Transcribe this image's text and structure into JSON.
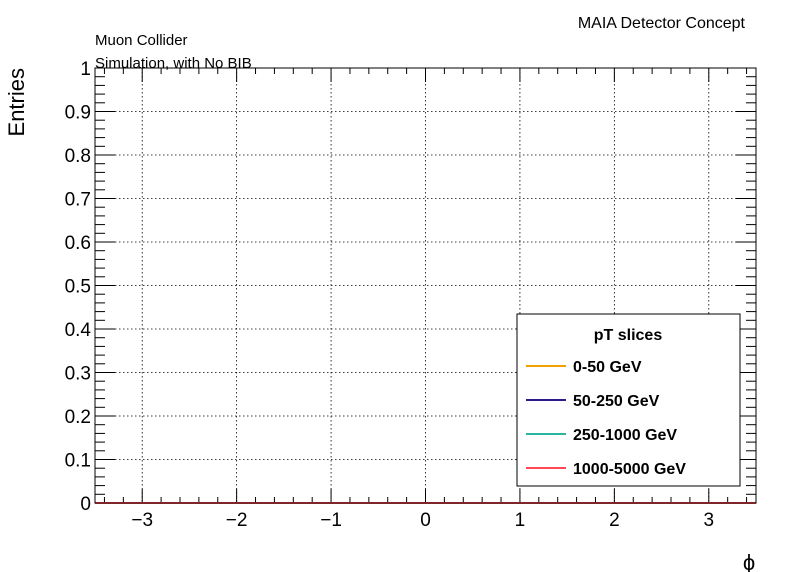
{
  "header": {
    "experiment": "MAIA Detector Concept",
    "line1": "Muon Collider",
    "line2": "Simulation, with No BIB"
  },
  "chart_data": {
    "type": "line",
    "xlabel": "ϕ",
    "ylabel": "Entries",
    "xlim": [
      -3.5,
      3.5
    ],
    "ylim": [
      0,
      1
    ],
    "x_ticks": [
      -3,
      -2,
      -1,
      0,
      1,
      2,
      3
    ],
    "x_tick_labels": [
      "−3",
      "−2",
      "−1",
      "0",
      "1",
      "2",
      "3"
    ],
    "y_ticks": [
      0,
      0.1,
      0.2,
      0.3,
      0.4,
      0.5,
      0.6,
      0.7,
      0.8,
      0.9,
      1
    ],
    "y_tick_labels": [
      "0",
      "0.1",
      "0.2",
      "0.3",
      "0.4",
      "0.5",
      "0.6",
      "0.7",
      "0.8",
      "0.9",
      "1"
    ],
    "grid": true,
    "legend": {
      "title": "pT slices",
      "placement": "bottom-right"
    },
    "series": [
      {
        "name": "0-50 GeV",
        "color": "#f0a000",
        "x": [
          -3.5,
          3.5
        ],
        "y": [
          0,
          0
        ]
      },
      {
        "name": "50-250 GeV",
        "color": "#2a1a8c",
        "x": [
          -3.5,
          3.5
        ],
        "y": [
          0,
          0
        ]
      },
      {
        "name": "250-1000 GeV",
        "color": "#2ab5a0",
        "x": [
          -3.5,
          3.5
        ],
        "y": [
          0,
          0
        ]
      },
      {
        "name": "1000-5000 GeV",
        "color": "#ff4a55",
        "x": [
          -3.5,
          3.5
        ],
        "y": [
          0,
          0
        ]
      }
    ]
  }
}
